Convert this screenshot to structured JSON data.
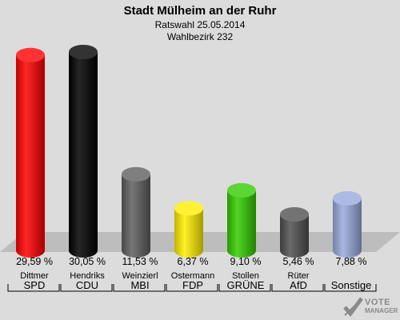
{
  "header": {
    "title": "Stadt Mülheim an der Ruhr",
    "subtitle": "Ratswahl 25.05.2014",
    "district": "Wahlbezirk 232"
  },
  "logo": {
    "line1": "VOTE",
    "line2": "MANAGER",
    "icon": "check-mark-icon"
  },
  "chart_data": {
    "type": "bar",
    "title": "Stadt Mülheim an der Ruhr",
    "categories": [
      "SPD",
      "CDU",
      "MBI",
      "FDP",
      "GRÜNE",
      "AfD",
      "Sonstige"
    ],
    "candidates": [
      "Dittmer",
      "Hendriks",
      "Weinzierl",
      "Ostermann",
      "Stollen",
      "Rüter",
      ""
    ],
    "values": [
      29.59,
      30.05,
      11.53,
      6.37,
      9.1,
      5.46,
      7.88
    ],
    "value_labels": [
      "29,59 %",
      "30,05 %",
      "11,53 %",
      "6,37 %",
      "9,10 %",
      "5,46 %",
      "7,88 %"
    ],
    "colors": [
      "#ff0000",
      "#000000",
      "#5f5f5f",
      "#ffee00",
      "#33cc00",
      "#505050",
      "#99aadd"
    ],
    "ylim": [
      0,
      30.05
    ],
    "grid": false,
    "legend": "none"
  }
}
